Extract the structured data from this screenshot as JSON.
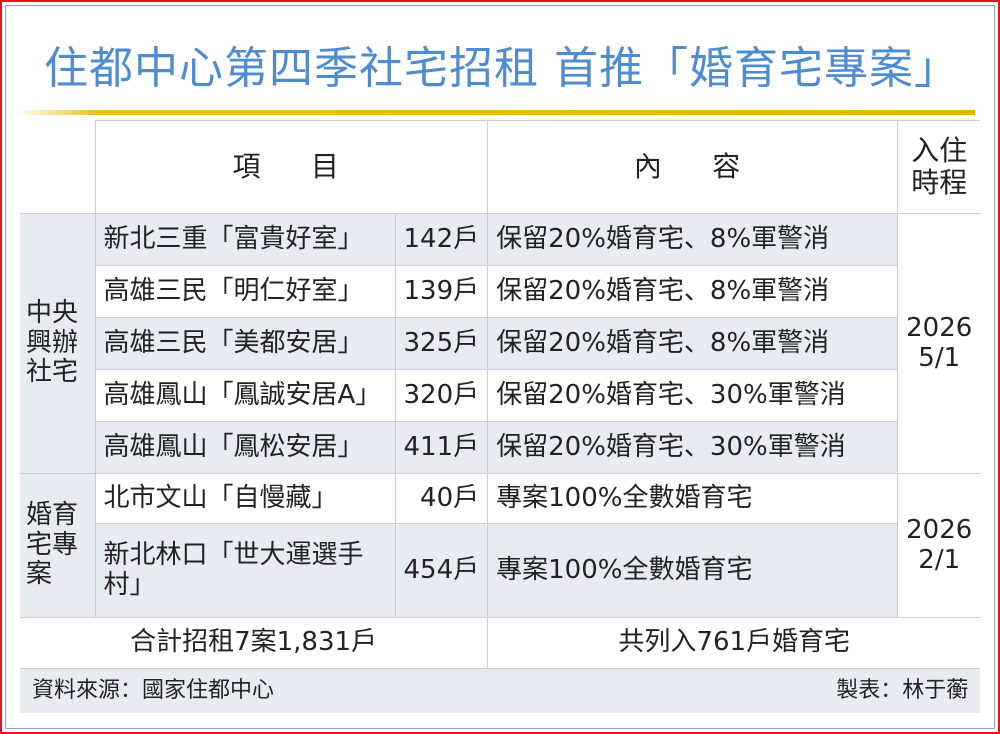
{
  "title": "住都中心第四季社宅招租 首推「婚育宅專案」",
  "header": {
    "item": "項　目",
    "content": "內　容",
    "move_in": "入住時程"
  },
  "groups": [
    {
      "category": "中央興辦社宅",
      "move_in": [
        "2026",
        "5/1"
      ],
      "rows": [
        {
          "name": "新北三重「富貴好室」",
          "units": "142戶",
          "content": "保留20%婚育宅、8%軍警消"
        },
        {
          "name": "高雄三民「明仁好室」",
          "units": "139戶",
          "content": "保留20%婚育宅、8%軍警消"
        },
        {
          "name": "高雄三民「美都安居」",
          "units": "325戶",
          "content": "保留20%婚育宅、8%軍警消"
        },
        {
          "name": "高雄鳳山「鳳誠安居A」",
          "units": "320戶",
          "content": "保留20%婚育宅、30%軍警消"
        },
        {
          "name": "高雄鳳山「鳳松安居」",
          "units": "411戶",
          "content": "保留20%婚育宅、30%軍警消"
        }
      ]
    },
    {
      "category": "婚育宅專案",
      "move_in": [
        "2026",
        "2/1"
      ],
      "rows": [
        {
          "name": "北市文山「自慢藏」",
          "units": "40戶",
          "content": "專案100%全數婚育宅"
        },
        {
          "name": "新北林口「世大運選手村」",
          "units": "454戶",
          "content": "專案100%全數婚育宅"
        }
      ]
    }
  ],
  "totals": {
    "left": "合計招租7案1,831戶",
    "right": "共列入761戶婚育宅"
  },
  "footer": {
    "source": "資料來源：國家住都中心",
    "credit": "製表：林于蘅"
  },
  "colors": {
    "title": "#4f8ccf",
    "frame": "#e8141c",
    "rule": "#e2b800",
    "row_shade": "#e8ebf1"
  }
}
